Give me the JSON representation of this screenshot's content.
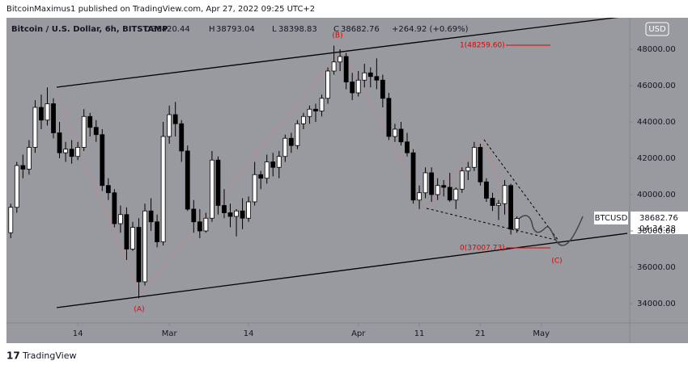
{
  "header": {
    "byline": "BitcoinMaximus1 published on TradingView.com, Apr 27, 2022 09:25 UTC+2"
  },
  "footer": {
    "brand": "TradingView"
  },
  "chart_data": {
    "type": "candlestick",
    "title": "Bitcoin / U.S. Dollar, 6h, BITSTAMP",
    "ohlc": [
      {
        "label": "O",
        "value": 38420.44
      },
      {
        "label": "H",
        "value": 38793.04
      },
      {
        "label": "L",
        "value": 38398.83
      },
      {
        "label": "C",
        "value": 38682.76
      }
    ],
    "change": "+264.92 (+0.69%)",
    "currency": "USD",
    "symbol": "BTCUSD",
    "countdown": "04:34:28",
    "annotations": {
      "a": "(A)",
      "b": "(B)",
      "c": "(C)",
      "level_1": "1(48259.60)",
      "level_0": "0(37007.73)"
    },
    "up_color": "#ffffff",
    "down_color": "#000000",
    "grid": false,
    "x": [
      2,
      3,
      4,
      5,
      6,
      7,
      8,
      9,
      10,
      11,
      12,
      13,
      14,
      15,
      16,
      17,
      18,
      19,
      20,
      21,
      22,
      23,
      24,
      25,
      26,
      27,
      28,
      29,
      30,
      31,
      32,
      33,
      34,
      35,
      36,
      37,
      38,
      39,
      40,
      41,
      42,
      43,
      44,
      45,
      46,
      47,
      48,
      49,
      50,
      51,
      52,
      53,
      54,
      55,
      56,
      57,
      58,
      59,
      60,
      61,
      62,
      63,
      64,
      65,
      66,
      67,
      68,
      69,
      70,
      71,
      72,
      73,
      74,
      75,
      76,
      77,
      78,
      79,
      80,
      81,
      82,
      83,
      84,
      85
    ],
    "open": [
      37900,
      39300,
      41600,
      41400,
      42600,
      44800,
      44100,
      45000,
      43400,
      42300,
      42500,
      42100,
      42600,
      44300,
      43700,
      43300,
      40500,
      40100,
      38400,
      38900,
      37000,
      38200,
      35200,
      39100,
      38500,
      37400,
      43200,
      44400,
      43900,
      42400,
      39200,
      38500,
      38000,
      38700,
      41900,
      39400,
      39000,
      38800,
      39100,
      38700,
      39600,
      41100,
      40900,
      41800,
      41500,
      42100,
      43100,
      42700,
      43900,
      44300,
      44700,
      44600,
      45300,
      46800,
      47300,
      47600,
      46200,
      45600,
      46300,
      46700,
      46500,
      46300,
      45300,
      43200,
      43600,
      42900,
      42300,
      39700,
      40100,
      41200,
      40000,
      40500,
      40400,
      39700,
      40300,
      41300,
      41500,
      42600,
      40700,
      39800,
      39400,
      39500,
      40500,
      38100
    ],
    "high": [
      39500,
      41800,
      42200,
      43000,
      45200,
      45500,
      45900,
      45300,
      44000,
      42900,
      43000,
      42900,
      44700,
      44500,
      44100,
      43600,
      40900,
      40300,
      39400,
      39300,
      38500,
      38700,
      39500,
      39800,
      38900,
      44000,
      44900,
      45100,
      44100,
      42700,
      39700,
      39200,
      39000,
      42400,
      42100,
      40300,
      39500,
      39200,
      39800,
      39900,
      41800,
      41300,
      42200,
      42300,
      42400,
      43300,
      43400,
      44100,
      44500,
      44900,
      45000,
      45500,
      47000,
      48200,
      48000,
      47800,
      46700,
      46800,
      47200,
      47000,
      47500,
      46600,
      45600,
      43900,
      44000,
      43400,
      42500,
      40500,
      41500,
      41500,
      40900,
      40800,
      41200,
      40400,
      41500,
      41800,
      42900,
      42800,
      40900,
      40100,
      39700,
      40800,
      40600,
      38800
    ],
    "low": [
      37600,
      39000,
      40900,
      41100,
      42300,
      43600,
      43800,
      43100,
      42000,
      41800,
      41700,
      41900,
      42400,
      43200,
      42900,
      40200,
      39700,
      38200,
      37900,
      36400,
      36900,
      34300,
      35000,
      38000,
      37100,
      37200,
      42800,
      43200,
      41800,
      39100,
      37900,
      37600,
      37900,
      38500,
      38900,
      38700,
      38200,
      37700,
      38100,
      38500,
      39400,
      40300,
      40600,
      41000,
      40900,
      41800,
      42300,
      42500,
      43600,
      43900,
      44000,
      44300,
      45000,
      46600,
      46800,
      45800,
      45200,
      45400,
      45900,
      45900,
      45800,
      44800,
      43000,
      42900,
      42700,
      42100,
      39500,
      39200,
      39800,
      39600,
      39700,
      39900,
      39600,
      39200,
      40100,
      40800,
      41300,
      40500,
      39600,
      39100,
      38600,
      38900,
      37800,
      37900
    ],
    "close": [
      39300,
      41600,
      41400,
      42600,
      44800,
      44100,
      45000,
      43400,
      42300,
      42500,
      42100,
      42600,
      44300,
      43700,
      43300,
      40500,
      40100,
      38400,
      38900,
      37000,
      38200,
      35200,
      39100,
      38500,
      37400,
      43200,
      44400,
      43900,
      42400,
      39200,
      38500,
      38000,
      38700,
      41900,
      39400,
      39000,
      38800,
      39100,
      38700,
      39600,
      41100,
      40900,
      41800,
      41500,
      42100,
      43100,
      42700,
      43900,
      44300,
      44700,
      44600,
      45300,
      46800,
      47300,
      47600,
      46200,
      45600,
      46300,
      46700,
      46500,
      46300,
      45300,
      43200,
      43600,
      42900,
      42300,
      39700,
      40100,
      41200,
      40000,
      40500,
      40400,
      39700,
      40300,
      41300,
      41500,
      42600,
      40700,
      39800,
      39400,
      39500,
      40500,
      38100,
      38682.76
    ],
    "xlim": [
      1.3,
      103.5
    ],
    "ylim": [
      32933,
      49733
    ],
    "xticks": [
      {
        "value": 13,
        "label": "14"
      },
      {
        "value": 28,
        "label": "Mar"
      },
      {
        "value": 41,
        "label": "14"
      },
      {
        "value": 59,
        "label": "Apr"
      },
      {
        "value": 69,
        "label": "11"
      },
      {
        "value": 79,
        "label": "21"
      },
      {
        "value": 89,
        "label": "May"
      }
    ],
    "yticks": [
      {
        "value": 34000,
        "label": "34000.00"
      },
      {
        "value": 36000,
        "label": "36000.00"
      },
      {
        "value": 38000,
        "label": "38000.00"
      },
      {
        "value": 40000,
        "label": "40000.00"
      },
      {
        "value": 42000,
        "label": "42000.00"
      },
      {
        "value": 44000,
        "label": "44000.00"
      },
      {
        "value": 46000,
        "label": "46000.00"
      },
      {
        "value": 48000,
        "label": "48000.00"
      }
    ]
  }
}
